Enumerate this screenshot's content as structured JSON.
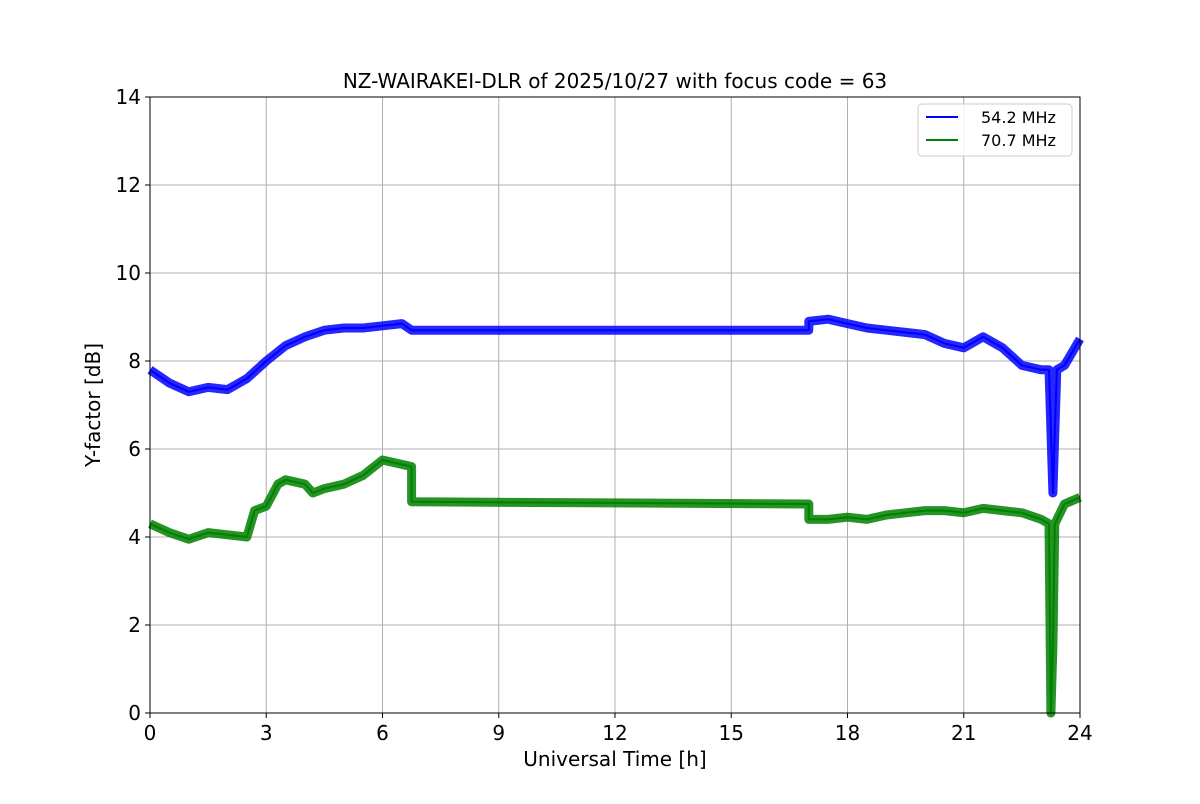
{
  "chart_data": {
    "type": "line",
    "title": "NZ-WAIRAKEI-DLR of 2025/10/27 with focus code = 63",
    "xlabel": "Universal Time [h]",
    "ylabel": "Y-factor [dB]",
    "xlim": [
      0,
      24
    ],
    "ylim": [
      0,
      14
    ],
    "xticks": [
      0,
      3,
      6,
      9,
      12,
      15,
      18,
      21,
      24
    ],
    "yticks": [
      0,
      2,
      4,
      6,
      8,
      10,
      12,
      14
    ],
    "grid": true,
    "legend_position": "top-right",
    "series": [
      {
        "name": "54.2 MHz",
        "color": "#0000ff",
        "x": [
          0,
          0.5,
          1.0,
          1.5,
          2.0,
          2.5,
          3.0,
          3.5,
          4.0,
          4.5,
          5.0,
          5.5,
          6.0,
          6.5,
          6.75,
          17.0,
          17.0,
          17.5,
          18.0,
          18.5,
          19.0,
          19.5,
          20.0,
          20.5,
          21.0,
          21.5,
          22.0,
          22.5,
          23.0,
          23.2,
          23.3,
          23.4,
          23.6,
          23.8,
          24.0
        ],
        "y": [
          7.8,
          7.5,
          7.3,
          7.4,
          7.35,
          7.6,
          8.0,
          8.35,
          8.55,
          8.7,
          8.75,
          8.75,
          8.8,
          8.85,
          8.7,
          8.7,
          8.9,
          8.95,
          8.85,
          8.75,
          8.7,
          8.65,
          8.6,
          8.4,
          8.3,
          8.55,
          8.3,
          7.9,
          7.8,
          7.8,
          5.0,
          7.8,
          7.9,
          8.2,
          8.5
        ]
      },
      {
        "name": "70.7 MHz",
        "color": "#008000",
        "x": [
          0,
          0.5,
          1.0,
          1.5,
          2.0,
          2.5,
          2.7,
          3.0,
          3.3,
          3.5,
          4.0,
          4.2,
          4.5,
          5.0,
          5.5,
          6.0,
          6.5,
          6.75,
          6.75,
          17.0,
          17.0,
          17.5,
          18.0,
          18.5,
          19.0,
          19.5,
          20.0,
          20.5,
          21.0,
          21.5,
          22.0,
          22.5,
          23.0,
          23.2,
          23.25,
          23.3,
          23.35,
          23.6,
          24.0
        ],
        "y": [
          4.3,
          4.1,
          3.95,
          4.1,
          4.05,
          4.0,
          4.6,
          4.7,
          5.2,
          5.3,
          5.2,
          5.0,
          5.1,
          5.2,
          5.4,
          5.75,
          5.65,
          5.6,
          4.8,
          4.75,
          4.4,
          4.4,
          4.45,
          4.4,
          4.5,
          4.55,
          4.6,
          4.6,
          4.55,
          4.65,
          4.6,
          4.55,
          4.4,
          4.3,
          0.0,
          1.5,
          4.3,
          4.75,
          4.9
        ]
      }
    ]
  }
}
